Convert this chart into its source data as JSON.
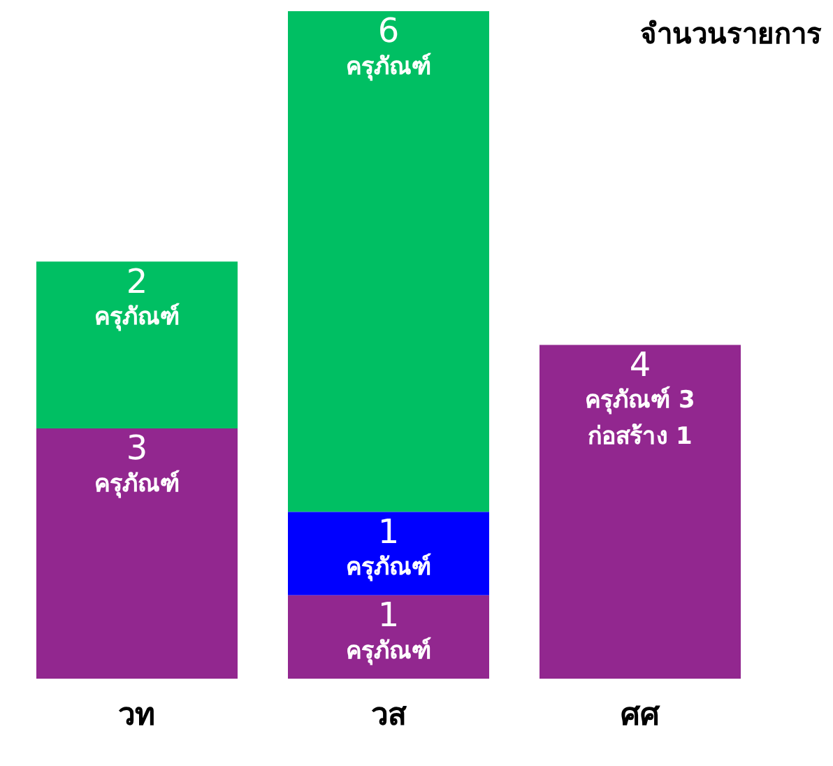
{
  "chart_data": {
    "type": "bar",
    "title": "จำนวนรายการ",
    "categories": [
      "วท",
      "วส",
      "ศศ"
    ],
    "stacked": true,
    "ylim": [
      0,
      8
    ],
    "tick_labels": "x",
    "series": [
      {
        "color": "#92278f",
        "values": [
          3,
          1,
          4
        ],
        "value_labels": [
          "3\nครุภัณฑ์",
          "1\nครุภัณฑ์",
          "4\nครุภัณฑ์ 3\nก่อสร้าง 1"
        ]
      },
      {
        "color": "#0000ff",
        "values": [
          null,
          1,
          null
        ],
        "value_labels": [
          null,
          "1\nครุภัณฑ์",
          null
        ]
      },
      {
        "color": "#00bf63",
        "values": [
          2,
          6,
          null
        ],
        "value_labels": [
          "2\nครุภัณฑ์",
          "6\nครุภัณฑ์",
          null
        ]
      }
    ]
  }
}
